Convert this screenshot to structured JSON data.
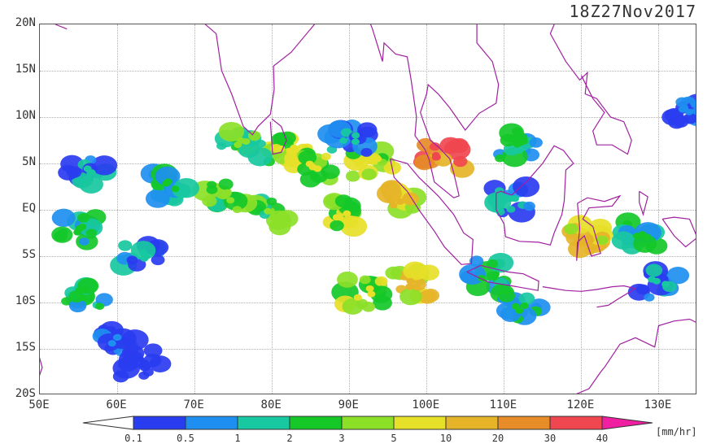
{
  "title": "18Z27Nov2017",
  "y_labels": [
    "20N",
    "15N",
    "10N",
    "5N",
    "EQ",
    "5S",
    "10S",
    "15S",
    "20S"
  ],
  "x_labels": [
    "50E",
    "60E",
    "70E",
    "80E",
    "90E",
    "100E",
    "110E",
    "120E",
    "130E"
  ],
  "colorbar": {
    "labels": [
      "0.1",
      "0.5",
      "1",
      "2",
      "3",
      "5",
      "10",
      "20",
      "30",
      "40"
    ],
    "colors": [
      "#2a3cf0",
      "#1e8ff0",
      "#18c8a0",
      "#14c828",
      "#8ce028",
      "#e6e028",
      "#e6b428",
      "#e68c28",
      "#f04650",
      "#f01ea0"
    ],
    "unit": "[mm/hr]"
  },
  "map": {
    "lon_range": [
      50,
      135
    ],
    "lat_range": [
      -20,
      20
    ],
    "coastline_color": "#a020a0",
    "precip_blobs": [
      {
        "lon": 82,
        "lat": 6.5,
        "intensity": 5
      },
      {
        "lon": 76,
        "lat": 7,
        "intensity": 4
      },
      {
        "lon": 85,
        "lat": 4.5,
        "intensity": 5
      },
      {
        "lon": 93,
        "lat": 5,
        "intensity": 5
      },
      {
        "lon": 96,
        "lat": 1,
        "intensity": 6
      },
      {
        "lon": 102,
        "lat": 5.5,
        "intensity": 8
      },
      {
        "lon": 89,
        "lat": -0.5,
        "intensity": 5
      },
      {
        "lon": 80,
        "lat": -0.5,
        "intensity": 4
      },
      {
        "lon": 74,
        "lat": 1.5,
        "intensity": 4
      },
      {
        "lon": 55,
        "lat": -2,
        "intensity": 3
      },
      {
        "lon": 63,
        "lat": -5,
        "intensity": 2
      },
      {
        "lon": 56,
        "lat": -9,
        "intensity": 3
      },
      {
        "lon": 98,
        "lat": -8,
        "intensity": 6
      },
      {
        "lon": 92,
        "lat": -9,
        "intensity": 5
      },
      {
        "lon": 108,
        "lat": -7,
        "intensity": 3
      },
      {
        "lon": 121,
        "lat": -3,
        "intensity": 6
      },
      {
        "lon": 128,
        "lat": -2.5,
        "intensity": 3
      },
      {
        "lon": 130,
        "lat": -8,
        "intensity": 2
      },
      {
        "lon": 111,
        "lat": 1,
        "intensity": 2
      },
      {
        "lon": 112,
        "lat": 7,
        "intensity": 3
      },
      {
        "lon": 60,
        "lat": -14,
        "intensity": 1
      },
      {
        "lon": 63,
        "lat": -16.5,
        "intensity": 0
      },
      {
        "lon": 67,
        "lat": 2.5,
        "intensity": 3
      },
      {
        "lon": 56,
        "lat": 4,
        "intensity": 2
      },
      {
        "lon": 90,
        "lat": 7.5,
        "intensity": 2
      },
      {
        "lon": 112,
        "lat": -10.5,
        "intensity": 3
      },
      {
        "lon": 134,
        "lat": 10.5,
        "intensity": 1
      }
    ]
  }
}
